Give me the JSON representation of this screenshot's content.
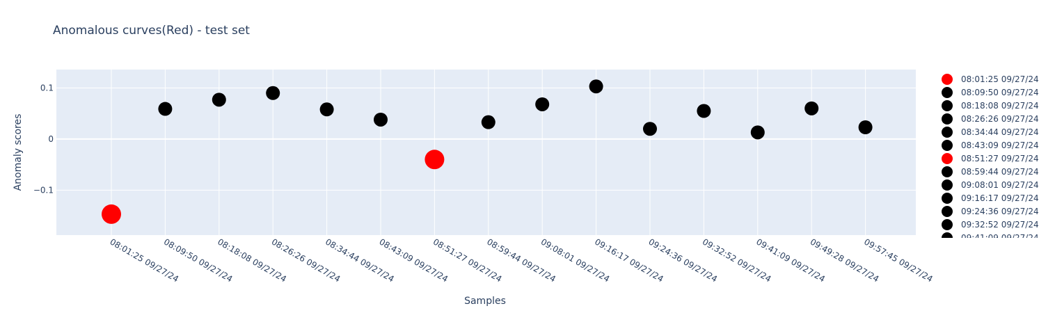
{
  "chart_data": {
    "type": "scatter",
    "title": "Anomalous curves(Red) - test set",
    "xlabel": "Samples",
    "ylabel": "Anomaly scores",
    "ylim": [
      -0.188,
      0.136
    ],
    "yticks": [
      -0.1,
      0,
      0.1
    ],
    "ytick_labels": [
      "−0.1",
      "0",
      "0.1"
    ],
    "grid": true,
    "legend_position": "right",
    "colors": {
      "anomaly": "#ff0000",
      "normal": "#000000",
      "plot_bg": "#e5ecf6",
      "grid": "#ffffff",
      "text": "#2a3f5f"
    },
    "points": [
      {
        "label": "08:01:25 09/27/24",
        "value": -0.147,
        "anomalous": true
      },
      {
        "label": "08:09:50 09/27/24",
        "value": 0.059,
        "anomalous": false
      },
      {
        "label": "08:18:08 09/27/24",
        "value": 0.077,
        "anomalous": false
      },
      {
        "label": "08:26:26 09/27/24",
        "value": 0.09,
        "anomalous": false
      },
      {
        "label": "08:34:44 09/27/24",
        "value": 0.058,
        "anomalous": false
      },
      {
        "label": "08:43:09 09/27/24",
        "value": 0.038,
        "anomalous": false
      },
      {
        "label": "08:51:27 09/27/24",
        "value": -0.04,
        "anomalous": true
      },
      {
        "label": "08:59:44 09/27/24",
        "value": 0.033,
        "anomalous": false
      },
      {
        "label": "09:08:01 09/27/24",
        "value": 0.068,
        "anomalous": false
      },
      {
        "label": "09:16:17 09/27/24",
        "value": 0.103,
        "anomalous": false
      },
      {
        "label": "09:24:36 09/27/24",
        "value": 0.02,
        "anomalous": false
      },
      {
        "label": "09:32:52 09/27/24",
        "value": 0.055,
        "anomalous": false
      },
      {
        "label": "09:41:09 09/27/24",
        "value": 0.013,
        "anomalous": false
      },
      {
        "label": "09:49:28 09/27/24",
        "value": 0.06,
        "anomalous": false
      },
      {
        "label": "09:57:45 09/27/24",
        "value": 0.023,
        "anomalous": false
      }
    ]
  }
}
